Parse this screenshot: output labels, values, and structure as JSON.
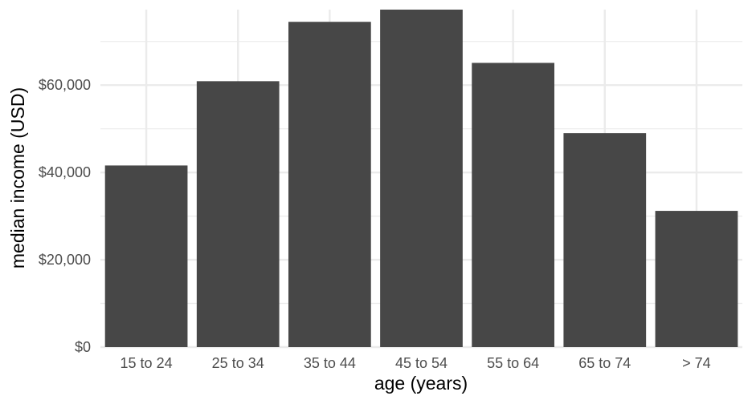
{
  "chart_data": {
    "type": "bar",
    "categories": [
      "15 to 24",
      "25 to 34",
      "35 to 44",
      "45 to 54",
      "55 to 64",
      "65 to 74",
      "> 74"
    ],
    "values": [
      41600,
      60900,
      74500,
      77300,
      65100,
      49000,
      31200
    ],
    "xlabel": "age (years)",
    "ylabel": "median income (USD)",
    "ylim": [
      0,
      77300
    ],
    "yticks": [
      0,
      20000,
      40000,
      60000
    ],
    "ytick_labels": [
      "$0",
      "$20,000",
      "$40,000",
      "$60,000"
    ],
    "grid": true,
    "bar_color": "#474747",
    "grid_color": "#ebebeb"
  }
}
